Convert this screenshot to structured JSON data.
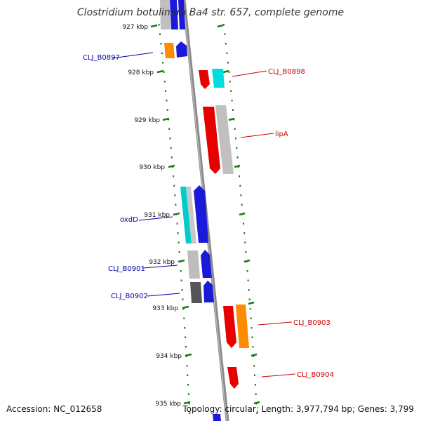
{
  "title": "Clostridium botulinum Ba4 str. 657, complete genome",
  "accession": "Accession: NC_012658",
  "summary": "Topology: circular; Length: 3,977,794 bp; Genes: 3,799",
  "colors": {
    "backbone": "#888888",
    "ticks": "#1a7a1a",
    "forward_label": "#cc0000",
    "reverse_label": "#0000aa"
  },
  "kbp_labels": [
    "927 kbp",
    "928 kbp",
    "929 kbp",
    "930 kbp",
    "931 kbp",
    "932 kbp",
    "933 kbp",
    "934 kbp",
    "935 kbp"
  ],
  "gene_labels": {
    "CLJ_B0897": "CLJ_B0897",
    "CLJ_B0898": "CLJ_B0898",
    "lipA": "lipA",
    "oxdD": "oxdD",
    "CLJ_B0901": "CLJ_B0901",
    "CLJ_B0902": "CLJ_B0902",
    "CLJ_B0903": "CLJ_B0903",
    "CLJ_B0904": "CLJ_B0904"
  }
}
